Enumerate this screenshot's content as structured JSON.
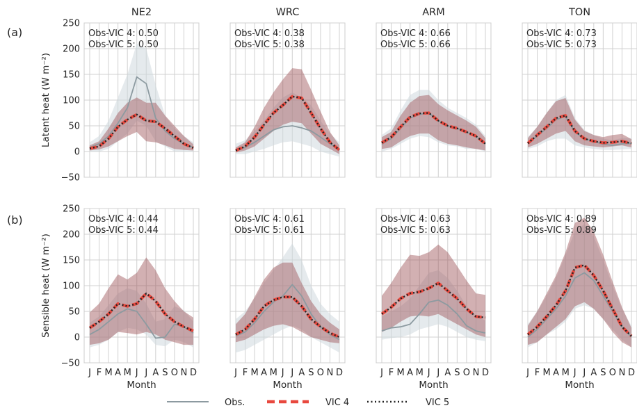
{
  "months": [
    "J",
    "F",
    "M",
    "A",
    "M",
    "J",
    "J",
    "A",
    "S",
    "O",
    "N",
    "D"
  ],
  "colors": {
    "obs": "#8c9aa0",
    "obs_band": "#cfd9de",
    "vic4": "#e8483e",
    "vic5": "#222222",
    "model_band": "#9b4f55",
    "grid": "#d0d0d0"
  },
  "legend": {
    "obs": "Obs.",
    "vic4": "VIC 4",
    "vic5": "VIC 5"
  },
  "chart_data": [
    {
      "type": "line",
      "row_label": "(a)",
      "title": "NE2",
      "xlabel": "",
      "ylabel": "Latent heat (W m⁻²)",
      "ylim": [
        -50,
        250
      ],
      "yticks": [
        -50,
        0,
        50,
        100,
        150,
        200,
        250
      ],
      "annotations": [
        "Obs-VIC 4: 0.50",
        "Obs-VIC 5: 0.50"
      ],
      "obs": [
        8,
        15,
        30,
        55,
        85,
        145,
        132,
        65,
        40,
        25,
        15,
        8
      ],
      "obs_band": [
        [
          0,
          18
        ],
        [
          0,
          30
        ],
        [
          5,
          60
        ],
        [
          20,
          105
        ],
        [
          35,
          150
        ],
        [
          60,
          210
        ],
        [
          50,
          200
        ],
        [
          20,
          130
        ],
        [
          10,
          70
        ],
        [
          0,
          45
        ],
        [
          0,
          30
        ],
        [
          0,
          18
        ]
      ],
      "vic4": [
        6,
        10,
        25,
        48,
        62,
        72,
        60,
        58,
        45,
        30,
        15,
        7
      ],
      "vic5": [
        6,
        10,
        25,
        48,
        62,
        72,
        60,
        58,
        45,
        30,
        15,
        7
      ],
      "model_band": [
        [
          2,
          12
        ],
        [
          4,
          20
        ],
        [
          10,
          45
        ],
        [
          20,
          75
        ],
        [
          30,
          95
        ],
        [
          38,
          105
        ],
        [
          20,
          95
        ],
        [
          18,
          95
        ],
        [
          12,
          70
        ],
        [
          5,
          50
        ],
        [
          3,
          30
        ],
        [
          2,
          14
        ]
      ]
    },
    {
      "type": "line",
      "row_label": "",
      "title": "WRC",
      "xlabel": "",
      "ylabel": "",
      "ylim": [
        -50,
        250
      ],
      "annotations": [
        "Obs-VIC 4: 0.38",
        "Obs-VIC 5: 0.38"
      ],
      "obs": [
        2,
        8,
        18,
        30,
        42,
        48,
        50,
        46,
        40,
        28,
        15,
        5
      ],
      "obs_band": [
        [
          -5,
          15
        ],
        [
          -5,
          22
        ],
        [
          0,
          40
        ],
        [
          5,
          60
        ],
        [
          12,
          85
        ],
        [
          18,
          105
        ],
        [
          20,
          115
        ],
        [
          15,
          105
        ],
        [
          10,
          90
        ],
        [
          0,
          60
        ],
        [
          -5,
          35
        ],
        [
          -10,
          18
        ]
      ],
      "vic4": [
        2,
        10,
        28,
        52,
        75,
        90,
        107,
        104,
        75,
        45,
        18,
        3
      ],
      "vic5": [
        2,
        10,
        28,
        52,
        75,
        90,
        107,
        104,
        75,
        45,
        18,
        3
      ],
      "model_band": [
        [
          -2,
          8
        ],
        [
          2,
          18
        ],
        [
          10,
          48
        ],
        [
          25,
          85
        ],
        [
          40,
          115
        ],
        [
          52,
          140
        ],
        [
          58,
          162
        ],
        [
          55,
          160
        ],
        [
          35,
          120
        ],
        [
          15,
          78
        ],
        [
          5,
          38
        ],
        [
          -5,
          12
        ]
      ]
    },
    {
      "type": "line",
      "row_label": "",
      "title": "ARM",
      "xlabel": "",
      "ylabel": "",
      "ylim": [
        -50,
        250
      ],
      "annotations": [
        "Obs-VIC 4: 0.66",
        "Obs-VIC 5: 0.66"
      ],
      "obs": [
        14,
        25,
        45,
        65,
        72,
        75,
        60,
        50,
        45,
        38,
        30,
        15
      ],
      "obs_band": [
        [
          0,
          32
        ],
        [
          5,
          45
        ],
        [
          15,
          80
        ],
        [
          25,
          110
        ],
        [
          30,
          120
        ],
        [
          28,
          120
        ],
        [
          18,
          100
        ],
        [
          12,
          85
        ],
        [
          10,
          75
        ],
        [
          5,
          65
        ],
        [
          5,
          52
        ],
        [
          0,
          30
        ]
      ],
      "vic4": [
        17,
        28,
        48,
        67,
        74,
        75,
        60,
        50,
        45,
        38,
        30,
        15
      ],
      "vic5": [
        17,
        28,
        48,
        67,
        74,
        75,
        60,
        50,
        45,
        38,
        30,
        15
      ],
      "model_band": [
        [
          5,
          28
        ],
        [
          8,
          38
        ],
        [
          20,
          70
        ],
        [
          30,
          95
        ],
        [
          35,
          108
        ],
        [
          35,
          110
        ],
        [
          22,
          92
        ],
        [
          15,
          80
        ],
        [
          12,
          70
        ],
        [
          8,
          60
        ],
        [
          5,
          48
        ],
        [
          2,
          26
        ]
      ]
    },
    {
      "type": "line",
      "row_label": "",
      "title": "TON",
      "xlabel": "",
      "ylabel": "",
      "ylim": [
        -50,
        250
      ],
      "annotations": [
        "Obs-VIC 4: 0.73",
        "Obs-VIC 5: 0.73"
      ],
      "obs": [
        16,
        30,
        45,
        62,
        68,
        38,
        25,
        20,
        14,
        12,
        15,
        16
      ],
      "obs_band": [
        [
          5,
          28
        ],
        [
          10,
          48
        ],
        [
          20,
          75
        ],
        [
          25,
          100
        ],
        [
          25,
          110
        ],
        [
          12,
          65
        ],
        [
          8,
          42
        ],
        [
          5,
          32
        ],
        [
          3,
          25
        ],
        [
          3,
          22
        ],
        [
          4,
          26
        ],
        [
          5,
          26
        ]
      ],
      "vic4": [
        16,
        32,
        48,
        65,
        70,
        40,
        25,
        20,
        17,
        18,
        20,
        16
      ],
      "vic5": [
        16,
        32,
        48,
        65,
        70,
        40,
        25,
        20,
        17,
        18,
        20,
        16
      ],
      "model_band": [
        [
          8,
          26
        ],
        [
          15,
          48
        ],
        [
          25,
          75
        ],
        [
          35,
          98
        ],
        [
          40,
          104
        ],
        [
          20,
          62
        ],
        [
          12,
          40
        ],
        [
          10,
          32
        ],
        [
          8,
          28
        ],
        [
          10,
          32
        ],
        [
          12,
          34
        ],
        [
          8,
          24
        ]
      ]
    },
    {
      "type": "line",
      "row_label": "(b)",
      "title": "",
      "xlabel": "Month",
      "ylabel": "Sensible heat (W m⁻²)",
      "ylim": [
        -50,
        250
      ],
      "yticks": [
        -50,
        0,
        50,
        100,
        150,
        200,
        250
      ],
      "annotations": [
        "Obs-VIC 4: 0.44",
        "Obs-VIC 5: 0.44"
      ],
      "obs": [
        5,
        15,
        30,
        45,
        55,
        50,
        25,
        -2,
        0,
        25,
        20,
        8
      ],
      "obs_band": [
        [
          -20,
          28
        ],
        [
          -15,
          40
        ],
        [
          -5,
          62
        ],
        [
          10,
          85
        ],
        [
          18,
          95
        ],
        [
          15,
          90
        ],
        [
          5,
          65
        ],
        [
          -15,
          30
        ],
        [
          -18,
          35
        ],
        [
          -5,
          60
        ],
        [
          -10,
          52
        ],
        [
          -20,
          30
        ]
      ],
      "vic4": [
        18,
        30,
        45,
        65,
        60,
        65,
        85,
        70,
        45,
        30,
        20,
        12
      ],
      "vic5": [
        18,
        30,
        45,
        65,
        60,
        65,
        85,
        70,
        45,
        30,
        20,
        12
      ],
      "model_band": [
        [
          -15,
          48
        ],
        [
          -12,
          65
        ],
        [
          -5,
          95
        ],
        [
          10,
          122
        ],
        [
          8,
          112
        ],
        [
          5,
          125
        ],
        [
          10,
          155
        ],
        [
          5,
          130
        ],
        [
          -5,
          95
        ],
        [
          -10,
          70
        ],
        [
          -15,
          50
        ],
        [
          -15,
          38
        ]
      ]
    },
    {
      "type": "line",
      "row_label": "",
      "title": "",
      "xlabel": "Month",
      "ylabel": "",
      "ylim": [
        -50,
        250
      ],
      "annotations": [
        "Obs-VIC 4: 0.61",
        "Obs-VIC 5: 0.61"
      ],
      "obs": [
        2,
        10,
        28,
        50,
        68,
        80,
        102,
        80,
        45,
        20,
        5,
        -5
      ],
      "obs_band": [
        [
          -30,
          35
        ],
        [
          -25,
          50
        ],
        [
          -15,
          75
        ],
        [
          -5,
          105
        ],
        [
          5,
          130
        ],
        [
          15,
          155
        ],
        [
          22,
          182
        ],
        [
          15,
          150
        ],
        [
          0,
          100
        ],
        [
          -10,
          65
        ],
        [
          -20,
          45
        ],
        [
          -30,
          30
        ]
      ],
      "vic4": [
        5,
        15,
        35,
        60,
        72,
        78,
        78,
        60,
        35,
        20,
        8,
        0
      ],
      "vic5": [
        5,
        15,
        35,
        60,
        72,
        78,
        78,
        60,
        35,
        20,
        8,
        0
      ],
      "model_band": [
        [
          -10,
          25
        ],
        [
          -5,
          45
        ],
        [
          5,
          78
        ],
        [
          15,
          112
        ],
        [
          22,
          135
        ],
        [
          25,
          145
        ],
        [
          20,
          145
        ],
        [
          10,
          105
        ],
        [
          0,
          70
        ],
        [
          -5,
          45
        ],
        [
          -10,
          28
        ],
        [
          -12,
          15
        ]
      ]
    },
    {
      "type": "line",
      "row_label": "",
      "title": "",
      "xlabel": "Month",
      "ylabel": "",
      "ylim": [
        -50,
        250
      ],
      "annotations": [
        "Obs-VIC 4: 0.63",
        "Obs-VIC 5: 0.63"
      ],
      "obs": [
        12,
        18,
        20,
        25,
        45,
        68,
        72,
        62,
        45,
        22,
        12,
        8
      ],
      "obs_band": [
        [
          -5,
          40
        ],
        [
          -2,
          50
        ],
        [
          0,
          60
        ],
        [
          5,
          75
        ],
        [
          15,
          100
        ],
        [
          20,
          125
        ],
        [
          25,
          130
        ],
        [
          20,
          115
        ],
        [
          10,
          90
        ],
        [
          0,
          60
        ],
        [
          -5,
          42
        ],
        [
          -8,
          32
        ]
      ],
      "vic4": [
        45,
        58,
        75,
        85,
        88,
        95,
        105,
        90,
        75,
        55,
        40,
        38
      ],
      "vic5": [
        45,
        58,
        75,
        85,
        88,
        95,
        105,
        90,
        75,
        55,
        40,
        38
      ],
      "model_band": [
        [
          10,
          80
        ],
        [
          18,
          105
        ],
        [
          30,
          135
        ],
        [
          40,
          160
        ],
        [
          42,
          158
        ],
        [
          40,
          165
        ],
        [
          45,
          180
        ],
        [
          35,
          165
        ],
        [
          25,
          138
        ],
        [
          15,
          110
        ],
        [
          5,
          85
        ],
        [
          0,
          82
        ]
      ]
    },
    {
      "type": "line",
      "row_label": "",
      "title": "",
      "xlabel": "Month",
      "ylabel": "",
      "ylim": [
        -50,
        250
      ],
      "annotations": [
        "Obs-VIC 4: 0.89",
        "Obs-VIC 5: 0.89"
      ],
      "obs": [
        0,
        15,
        35,
        55,
        80,
        115,
        125,
        110,
        80,
        50,
        20,
        0
      ],
      "obs_band": [
        [
          -20,
          25
        ],
        [
          -10,
          50
        ],
        [
          5,
          80
        ],
        [
          15,
          115
        ],
        [
          30,
          160
        ],
        [
          55,
          205
        ],
        [
          62,
          220
        ],
        [
          55,
          195
        ],
        [
          35,
          150
        ],
        [
          15,
          100
        ],
        [
          -5,
          55
        ],
        [
          -20,
          22
        ]
      ],
      "vic4": [
        5,
        20,
        40,
        62,
        90,
        135,
        140,
        120,
        90,
        55,
        20,
        2
      ],
      "vic5": [
        5,
        20,
        40,
        62,
        90,
        135,
        140,
        120,
        90,
        55,
        20,
        2
      ],
      "model_band": [
        [
          -15,
          22
        ],
        [
          -10,
          50
        ],
        [
          5,
          85
        ],
        [
          20,
          120
        ],
        [
          35,
          165
        ],
        [
          60,
          222
        ],
        [
          68,
          232
        ],
        [
          55,
          205
        ],
        [
          35,
          160
        ],
        [
          10,
          108
        ],
        [
          -10,
          58
        ],
        [
          -20,
          18
        ]
      ]
    }
  ]
}
